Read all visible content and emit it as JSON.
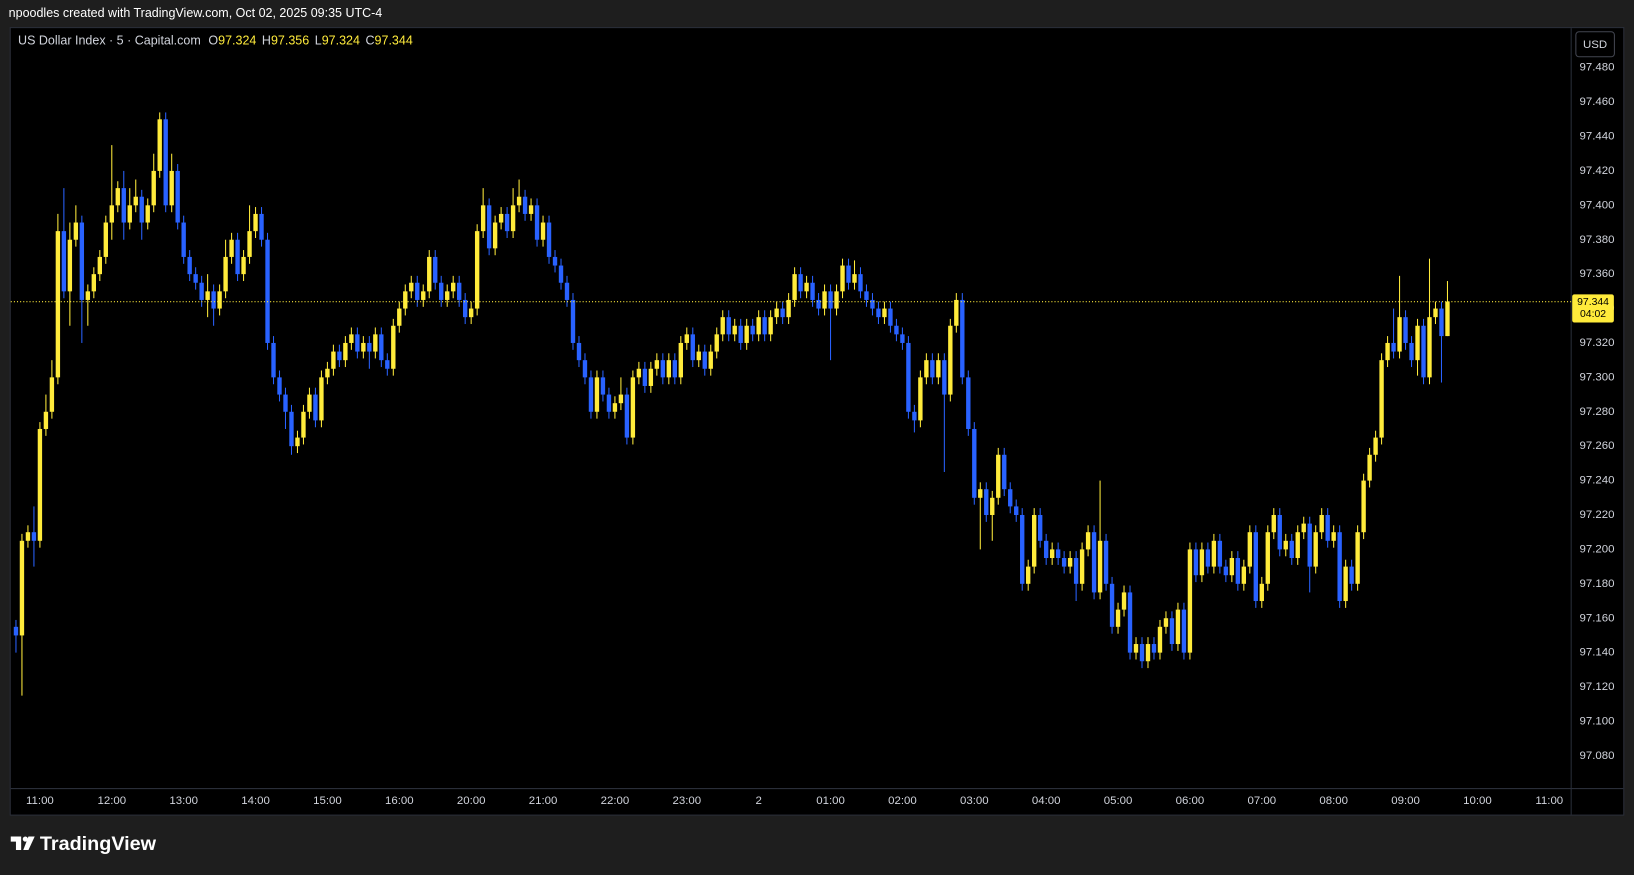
{
  "header": "npoodles created with TradingView.com, Oct 02, 2025 09:35 UTC-4",
  "footer_brand": "TradingView",
  "chart_data": {
    "type": "candlestick",
    "symbol": "US Dollar Index · 5 · Capital.com",
    "ohlc_letters": [
      "O",
      "H",
      "L",
      "C"
    ],
    "currency": "USD",
    "countdown": "04:02",
    "up_color": "#ffeb3b",
    "down_color": "#2962ff",
    "grid": false,
    "ylim": [
      97.061,
      97.503
    ],
    "yticks": [
      {
        "value": 97.08,
        "label": "97.080"
      },
      {
        "value": 97.1,
        "label": "97.100"
      },
      {
        "value": 97.12,
        "label": "97.120"
      },
      {
        "value": 97.14,
        "label": "97.140"
      },
      {
        "value": 97.16,
        "label": "97.160"
      },
      {
        "value": 97.18,
        "label": "97.180"
      },
      {
        "value": 97.2,
        "label": "97.200"
      },
      {
        "value": 97.22,
        "label": "97.220"
      },
      {
        "value": 97.24,
        "label": "97.240"
      },
      {
        "value": 97.26,
        "label": "97.260"
      },
      {
        "value": 97.28,
        "label": "97.280"
      },
      {
        "value": 97.3,
        "label": "97.300"
      },
      {
        "value": 97.32,
        "label": "97.320"
      },
      {
        "value": 97.34,
        "label": "97.340"
      },
      {
        "value": 97.36,
        "label": "97.360"
      },
      {
        "value": 97.38,
        "label": "97.380"
      },
      {
        "value": 97.4,
        "label": "97.400"
      },
      {
        "value": 97.42,
        "label": "97.420"
      },
      {
        "value": 97.44,
        "label": "97.440"
      },
      {
        "value": 97.46,
        "label": "97.460"
      },
      {
        "value": 97.48,
        "label": "97.480"
      }
    ],
    "categories": [
      null,
      null,
      null,
      null,
      "11:00",
      null,
      null,
      null,
      null,
      null,
      null,
      null,
      null,
      null,
      null,
      null,
      "12:00",
      null,
      null,
      null,
      null,
      null,
      null,
      null,
      null,
      null,
      null,
      null,
      "13:00",
      null,
      null,
      null,
      null,
      null,
      null,
      null,
      null,
      null,
      null,
      null,
      "14:00",
      null,
      null,
      null,
      null,
      null,
      null,
      null,
      null,
      null,
      null,
      null,
      "15:00",
      null,
      null,
      null,
      null,
      null,
      null,
      null,
      null,
      null,
      null,
      null,
      "16:00",
      null,
      null,
      null,
      null,
      null,
      null,
      null,
      null,
      null,
      null,
      null,
      "20:00",
      null,
      null,
      null,
      null,
      null,
      null,
      null,
      null,
      null,
      null,
      null,
      "21:00",
      null,
      null,
      null,
      null,
      null,
      null,
      null,
      null,
      null,
      null,
      null,
      "22:00",
      null,
      null,
      null,
      null,
      null,
      null,
      null,
      null,
      null,
      null,
      null,
      "23:00",
      null,
      null,
      null,
      null,
      null,
      null,
      null,
      null,
      null,
      null,
      null,
      "2",
      null,
      null,
      null,
      null,
      null,
      null,
      null,
      null,
      null,
      null,
      null,
      "01:00",
      null,
      null,
      null,
      null,
      null,
      null,
      null,
      null,
      null,
      null,
      null,
      "02:00",
      null,
      null,
      null,
      null,
      null,
      null,
      null,
      null,
      null,
      null,
      null,
      "03:00",
      null,
      null,
      null,
      null,
      null,
      null,
      null,
      null,
      null,
      null,
      null,
      "04:00",
      null,
      null,
      null,
      null,
      null,
      null,
      null,
      null,
      null,
      null,
      null,
      "05:00",
      null,
      null,
      null,
      null,
      null,
      null,
      null,
      null,
      null,
      null,
      null,
      "06:00",
      null,
      null,
      null,
      null,
      null,
      null,
      null,
      null,
      null,
      null,
      null,
      "07:00",
      null,
      null,
      null,
      null,
      null,
      null,
      null,
      null,
      null,
      null,
      null,
      "08:00",
      null,
      null,
      null,
      null,
      null,
      null,
      null,
      null,
      null,
      null,
      null,
      "09:00",
      null,
      null,
      null,
      null,
      null,
      null,
      null,
      null,
      null,
      null,
      null,
      "10:00",
      null,
      null,
      null,
      null,
      null,
      null,
      null,
      null,
      null,
      null,
      null,
      "11:00",
      null
    ],
    "open": [
      97.155,
      97.15,
      97.205,
      97.21,
      97.205,
      97.27,
      97.28,
      97.3,
      97.385,
      97.35,
      97.38,
      97.39,
      97.345,
      97.35,
      97.36,
      97.37,
      97.39,
      97.4,
      97.41,
      97.39,
      97.4,
      97.405,
      97.39,
      97.4,
      97.42,
      97.45,
      97.4,
      97.42,
      97.39,
      97.37,
      97.36,
      97.355,
      97.345,
      97.35,
      97.34,
      97.35,
      97.37,
      97.38,
      97.36,
      97.37,
      97.385,
      97.395,
      97.38,
      97.32,
      97.3,
      97.29,
      97.28,
      97.26,
      97.265,
      97.28,
      97.29,
      97.275,
      97.3,
      97.305,
      97.315,
      97.31,
      97.32,
      97.325,
      97.315,
      97.32,
      97.315,
      97.325,
      97.31,
      97.305,
      97.33,
      97.34,
      97.35,
      97.355,
      97.345,
      97.35,
      97.37,
      97.355,
      97.345,
      97.35,
      97.355,
      97.345,
      97.335,
      97.34,
      97.385,
      97.4,
      97.375,
      97.39,
      97.395,
      97.385,
      97.4,
      97.405,
      97.395,
      97.4,
      97.38,
      97.39,
      97.37,
      97.365,
      97.355,
      97.345,
      97.32,
      97.31,
      97.3,
      97.28,
      97.3,
      97.29,
      97.28,
      97.285,
      97.29,
      97.265,
      97.3,
      97.305,
      97.295,
      97.305,
      97.31,
      97.3,
      97.31,
      97.3,
      97.32,
      97.325,
      97.31,
      97.315,
      97.305,
      97.315,
      97.325,
      97.335,
      97.325,
      97.33,
      97.32,
      97.33,
      97.325,
      97.335,
      97.325,
      97.335,
      97.34,
      97.335,
      97.345,
      97.36,
      97.35,
      97.355,
      97.345,
      97.34,
      97.35,
      97.34,
      97.35,
      97.365,
      97.355,
      97.36,
      97.35,
      97.345,
      97.34,
      97.335,
      97.34,
      97.33,
      97.325,
      97.32,
      97.28,
      97.275,
      97.3,
      97.31,
      97.3,
      97.31,
      97.29,
      97.33,
      97.345,
      97.3,
      97.27,
      97.23,
      97.235,
      97.22,
      97.23,
      97.255,
      97.235,
      97.225,
      97.22,
      97.18,
      97.19,
      97.22,
      97.205,
      97.195,
      97.2,
      97.195,
      97.19,
      97.195,
      97.18,
      97.2,
      97.21,
      97.175,
      97.205,
      97.18,
      97.155,
      97.165,
      97.175,
      97.14,
      97.145,
      97.135,
      97.145,
      97.14,
      97.155,
      97.16,
      97.145,
      97.165,
      97.14,
      97.2,
      97.185,
      97.2,
      97.19,
      97.205,
      97.19,
      97.185,
      97.195,
      97.18,
      97.19,
      97.21,
      97.17,
      97.18,
      97.21,
      97.22,
      97.2,
      97.205,
      97.195,
      97.21,
      97.215,
      97.19,
      97.21,
      97.22,
      97.205,
      97.21,
      97.17,
      97.19,
      97.18,
      97.21,
      97.24,
      97.255,
      97.265,
      97.31,
      97.32,
      97.315,
      97.335,
      97.32,
      97.31,
      97.33,
      97.3,
      97.335,
      97.34,
      97.324,
      null,
      null,
      null,
      null,
      null,
      null,
      null,
      null,
      null,
      null,
      null,
      null,
      null,
      null,
      null,
      null,
      null,
      null
    ],
    "high": [
      97.159,
      97.209,
      97.214,
      97.225,
      97.274,
      97.29,
      97.31,
      97.395,
      97.41,
      97.39,
      97.4,
      97.394,
      97.354,
      97.364,
      97.374,
      97.394,
      97.435,
      97.414,
      97.42,
      97.41,
      97.415,
      97.409,
      97.404,
      97.43,
      97.454,
      97.454,
      97.43,
      97.424,
      97.394,
      97.374,
      97.364,
      97.359,
      97.36,
      97.354,
      97.354,
      97.38,
      97.384,
      97.384,
      97.374,
      97.4,
      97.399,
      97.399,
      97.384,
      97.324,
      97.304,
      97.294,
      97.284,
      97.269,
      97.284,
      97.294,
      97.294,
      97.304,
      97.309,
      97.319,
      97.319,
      97.324,
      97.329,
      97.329,
      97.324,
      97.324,
      97.329,
      97.329,
      97.314,
      97.334,
      97.344,
      97.354,
      97.359,
      97.359,
      97.354,
      97.374,
      97.374,
      97.359,
      97.354,
      97.359,
      97.359,
      97.349,
      97.344,
      97.389,
      97.41,
      97.404,
      97.394,
      97.399,
      97.399,
      97.41,
      97.415,
      97.409,
      97.404,
      97.404,
      97.394,
      97.394,
      97.374,
      97.369,
      97.359,
      97.349,
      97.324,
      97.314,
      97.304,
      97.304,
      97.304,
      97.294,
      97.289,
      97.3,
      97.294,
      97.304,
      97.309,
      97.309,
      97.309,
      97.314,
      97.314,
      97.314,
      97.314,
      97.324,
      97.329,
      97.329,
      97.319,
      97.319,
      97.319,
      97.329,
      97.339,
      97.339,
      97.334,
      97.334,
      97.334,
      97.334,
      97.339,
      97.339,
      97.339,
      97.344,
      97.344,
      97.349,
      97.364,
      97.364,
      97.359,
      97.359,
      97.349,
      97.354,
      97.354,
      97.354,
      97.369,
      97.369,
      97.368,
      97.364,
      97.354,
      97.349,
      97.344,
      97.344,
      97.344,
      97.334,
      97.329,
      97.324,
      97.284,
      97.304,
      97.314,
      97.314,
      97.314,
      97.314,
      97.334,
      97.349,
      97.349,
      97.304,
      97.274,
      97.239,
      97.239,
      97.234,
      97.259,
      97.259,
      97.239,
      97.229,
      97.224,
      97.194,
      97.224,
      97.224,
      97.209,
      97.204,
      97.204,
      97.199,
      97.199,
      97.199,
      97.204,
      97.214,
      97.214,
      97.24,
      97.209,
      97.184,
      97.169,
      97.179,
      97.179,
      97.149,
      97.149,
      97.149,
      97.149,
      97.159,
      97.164,
      97.164,
      97.169,
      97.169,
      97.204,
      97.204,
      97.204,
      97.204,
      97.209,
      97.209,
      97.194,
      97.199,
      97.199,
      97.194,
      97.214,
      97.214,
      97.184,
      97.214,
      97.224,
      97.224,
      97.209,
      97.209,
      97.214,
      97.219,
      97.219,
      97.214,
      97.224,
      97.224,
      97.214,
      97.214,
      97.194,
      97.194,
      97.214,
      97.244,
      97.259,
      97.269,
      97.314,
      97.324,
      97.34,
      97.359,
      97.339,
      97.324,
      97.334,
      97.334,
      97.369,
      97.344,
      97.344,
      97.356,
      null,
      null,
      null,
      null,
      null,
      null,
      null,
      null,
      null,
      null,
      null,
      null,
      null,
      null,
      null,
      null,
      null,
      null
    ],
    "low": [
      97.14,
      97.115,
      97.201,
      97.19,
      97.201,
      97.266,
      97.276,
      97.296,
      97.346,
      97.33,
      97.376,
      97.32,
      97.33,
      97.346,
      97.356,
      97.366,
      97.38,
      97.396,
      97.38,
      97.386,
      97.396,
      97.38,
      97.386,
      97.396,
      97.416,
      97.396,
      97.396,
      97.386,
      97.366,
      97.356,
      97.351,
      97.341,
      97.335,
      97.33,
      97.336,
      97.346,
      97.366,
      97.356,
      97.356,
      97.366,
      97.381,
      97.376,
      97.316,
      97.296,
      97.286,
      97.27,
      97.255,
      97.256,
      97.261,
      97.276,
      97.271,
      97.271,
      97.296,
      97.301,
      97.306,
      97.306,
      97.316,
      97.311,
      97.311,
      97.305,
      97.311,
      97.306,
      97.301,
      97.301,
      97.326,
      97.336,
      97.346,
      97.341,
      97.341,
      97.346,
      97.351,
      97.341,
      97.341,
      97.346,
      97.341,
      97.331,
      97.331,
      97.336,
      97.381,
      97.371,
      97.371,
      97.386,
      97.381,
      97.381,
      97.396,
      97.391,
      97.391,
      97.376,
      97.376,
      97.366,
      97.361,
      97.351,
      97.341,
      97.316,
      97.306,
      97.296,
      97.276,
      97.276,
      97.286,
      97.276,
      97.276,
      97.281,
      97.261,
      97.261,
      97.296,
      97.291,
      97.291,
      97.301,
      97.296,
      97.296,
      97.296,
      97.296,
      97.316,
      97.306,
      97.306,
      97.301,
      97.301,
      97.311,
      97.321,
      97.321,
      97.321,
      97.316,
      97.316,
      97.321,
      97.321,
      97.321,
      97.321,
      97.331,
      97.331,
      97.331,
      97.341,
      97.346,
      97.346,
      97.341,
      97.336,
      97.336,
      97.31,
      97.336,
      97.346,
      97.351,
      97.351,
      97.346,
      97.341,
      97.336,
      97.331,
      97.331,
      97.326,
      97.321,
      97.316,
      97.276,
      97.268,
      97.271,
      97.296,
      97.296,
      97.296,
      97.245,
      97.286,
      97.326,
      97.296,
      97.266,
      97.226,
      97.2,
      97.216,
      97.205,
      97.226,
      97.231,
      97.221,
      97.216,
      97.176,
      97.176,
      97.186,
      97.201,
      97.191,
      97.191,
      97.191,
      97.186,
      97.186,
      97.17,
      97.176,
      97.196,
      97.171,
      97.171,
      97.176,
      97.151,
      97.151,
      97.161,
      97.136,
      97.136,
      97.131,
      97.131,
      97.136,
      97.136,
      97.151,
      97.141,
      97.141,
      97.136,
      97.136,
      97.181,
      97.181,
      97.186,
      97.186,
      97.186,
      97.181,
      97.181,
      97.176,
      97.176,
      97.186,
      97.166,
      97.166,
      97.176,
      97.206,
      97.196,
      97.196,
      97.191,
      97.191,
      97.206,
      97.175,
      97.186,
      97.206,
      97.201,
      97.201,
      97.166,
      97.166,
      97.176,
      97.176,
      97.206,
      97.236,
      97.251,
      97.261,
      97.306,
      97.311,
      97.311,
      97.316,
      97.306,
      97.301,
      97.296,
      97.296,
      97.331,
      97.297,
      97.324,
      null,
      null,
      null,
      null,
      null,
      null,
      null,
      null,
      null,
      null,
      null,
      null,
      null,
      null,
      null,
      null,
      null,
      null
    ],
    "close": [
      97.15,
      97.205,
      97.21,
      97.205,
      97.27,
      97.28,
      97.3,
      97.385,
      97.35,
      97.38,
      97.39,
      97.345,
      97.35,
      97.36,
      97.37,
      97.39,
      97.4,
      97.41,
      97.39,
      97.4,
      97.405,
      97.39,
      97.4,
      97.42,
      97.45,
      97.4,
      97.42,
      97.39,
      97.37,
      97.36,
      97.355,
      97.345,
      97.35,
      97.34,
      97.35,
      97.37,
      97.38,
      97.36,
      97.37,
      97.385,
      97.395,
      97.38,
      97.32,
      97.3,
      97.29,
      97.28,
      97.26,
      97.265,
      97.28,
      97.29,
      97.275,
      97.3,
      97.305,
      97.315,
      97.31,
      97.32,
      97.325,
      97.315,
      97.32,
      97.315,
      97.325,
      97.31,
      97.305,
      97.33,
      97.34,
      97.35,
      97.355,
      97.345,
      97.35,
      97.37,
      97.355,
      97.345,
      97.35,
      97.355,
      97.345,
      97.335,
      97.34,
      97.385,
      97.4,
      97.375,
      97.39,
      97.395,
      97.385,
      97.4,
      97.405,
      97.395,
      97.4,
      97.38,
      97.39,
      97.37,
      97.365,
      97.355,
      97.345,
      97.32,
      97.31,
      97.3,
      97.28,
      97.3,
      97.29,
      97.28,
      97.285,
      97.29,
      97.265,
      97.3,
      97.305,
      97.295,
      97.305,
      97.31,
      97.3,
      97.31,
      97.3,
      97.32,
      97.325,
      97.31,
      97.315,
      97.305,
      97.315,
      97.325,
      97.335,
      97.325,
      97.33,
      97.32,
      97.33,
      97.325,
      97.335,
      97.325,
      97.335,
      97.34,
      97.335,
      97.345,
      97.36,
      97.35,
      97.355,
      97.345,
      97.34,
      97.35,
      97.34,
      97.35,
      97.365,
      97.355,
      97.36,
      97.35,
      97.345,
      97.34,
      97.335,
      97.34,
      97.33,
      97.325,
      97.32,
      97.28,
      97.275,
      97.3,
      97.31,
      97.3,
      97.31,
      97.29,
      97.33,
      97.345,
      97.3,
      97.27,
      97.23,
      97.235,
      97.22,
      97.23,
      97.255,
      97.235,
      97.225,
      97.22,
      97.18,
      97.19,
      97.22,
      97.205,
      97.195,
      97.2,
      97.195,
      97.19,
      97.195,
      97.18,
      97.2,
      97.21,
      97.175,
      97.205,
      97.18,
      97.155,
      97.165,
      97.175,
      97.14,
      97.145,
      97.135,
      97.145,
      97.14,
      97.155,
      97.16,
      97.145,
      97.165,
      97.14,
      97.2,
      97.185,
      97.2,
      97.19,
      97.205,
      97.19,
      97.185,
      97.195,
      97.18,
      97.19,
      97.21,
      97.17,
      97.18,
      97.21,
      97.22,
      97.2,
      97.205,
      97.195,
      97.21,
      97.215,
      97.19,
      97.21,
      97.22,
      97.205,
      97.21,
      97.17,
      97.19,
      97.18,
      97.21,
      97.24,
      97.255,
      97.265,
      97.31,
      97.32,
      97.315,
      97.335,
      97.32,
      97.31,
      97.33,
      97.3,
      97.335,
      97.34,
      97.324,
      97.344,
      null,
      null,
      null,
      null,
      null,
      null,
      null,
      null,
      null,
      null,
      null,
      null,
      null,
      null,
      null,
      null,
      null,
      null
    ]
  }
}
